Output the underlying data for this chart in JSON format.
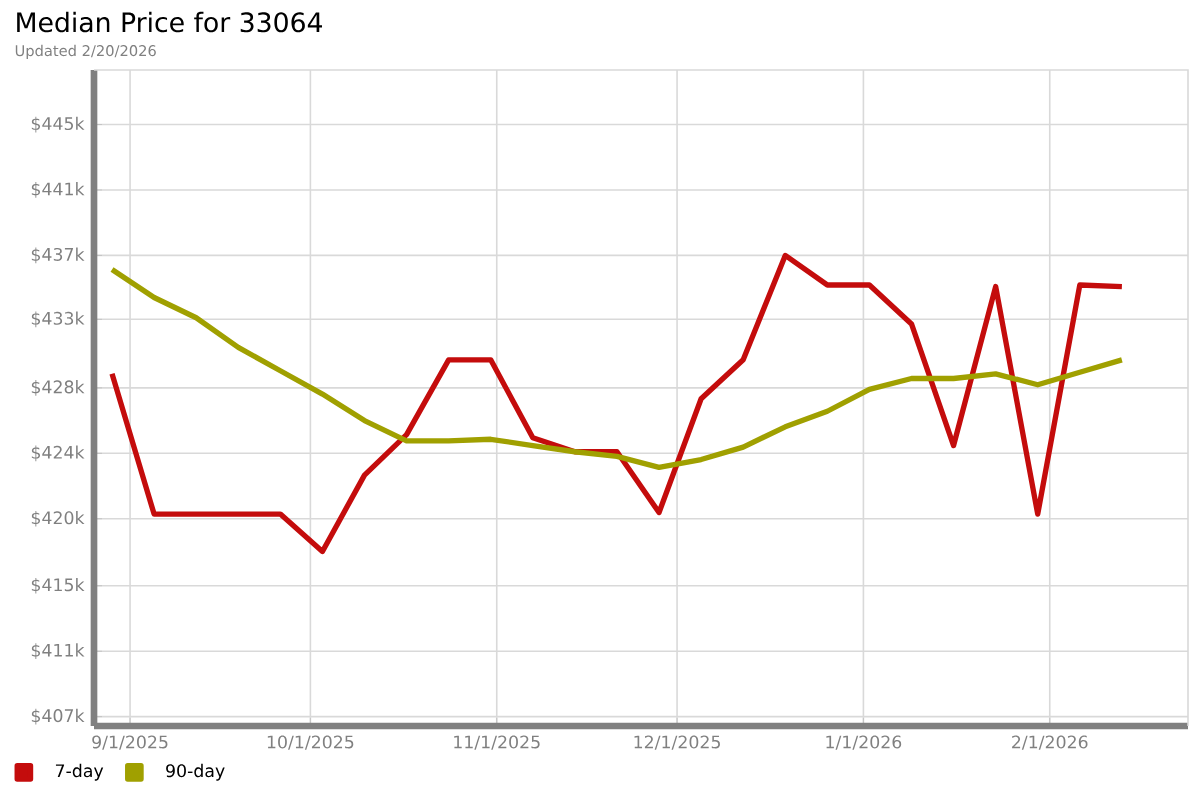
{
  "chart_data": {
    "type": "line",
    "title": "Median Price for 33064",
    "subtitle": "Updated 2/20/2026",
    "x": [
      "2025-08-29",
      "2025-09-05",
      "2025-09-12",
      "2025-09-19",
      "2025-09-26",
      "2025-10-03",
      "2025-10-10",
      "2025-10-17",
      "2025-10-24",
      "2025-10-31",
      "2025-11-07",
      "2025-11-14",
      "2025-11-21",
      "2025-11-28",
      "2025-12-05",
      "2025-12-12",
      "2025-12-19",
      "2025-12-26",
      "2026-01-02",
      "2026-01-09",
      "2026-01-16",
      "2026-01-23",
      "2026-01-30",
      "2026-02-06",
      "2026-02-13"
    ],
    "series": [
      {
        "name": "7-day",
        "color": "#c40c0c",
        "values": [
          429.0,
          420.0,
          420.0,
          420.0,
          420.0,
          417.6,
          422.5,
          425.1,
          429.9,
          429.9,
          424.9,
          424.0,
          424.0,
          420.1,
          427.4,
          429.9,
          436.6,
          434.7,
          434.7,
          432.2,
          424.4,
          434.6,
          420.0,
          434.7,
          434.6
        ]
      },
      {
        "name": "90-day",
        "color": "#a0a000",
        "values": [
          435.7,
          433.9,
          432.6,
          430.7,
          429.2,
          427.7,
          426.0,
          424.7,
          424.7,
          424.8,
          424.4,
          424.0,
          423.7,
          423.0,
          423.5,
          424.3,
          425.6,
          426.6,
          428.0,
          428.7,
          428.7,
          429.0,
          428.3,
          429.1,
          429.9
        ]
      }
    ],
    "xlim": [
      "2025-08-26",
      "2026-02-24"
    ],
    "xticks": [
      {
        "value": "2025-09-01",
        "label": "9/1/2025"
      },
      {
        "value": "2025-10-01",
        "label": "10/1/2025"
      },
      {
        "value": "2025-11-01",
        "label": "11/1/2025"
      },
      {
        "value": "2025-12-01",
        "label": "12/1/2025"
      },
      {
        "value": "2026-01-01",
        "label": "1/1/2026"
      },
      {
        "value": "2026-02-01",
        "label": "2/1/2026"
      }
    ],
    "ylim": [
      406.4,
      448.5
    ],
    "yticks": [
      {
        "value": 407,
        "label": "$407k"
      },
      {
        "value": 411.2,
        "label": "$411k"
      },
      {
        "value": 415.4,
        "label": "$415k"
      },
      {
        "value": 419.7,
        "label": "$420k"
      },
      {
        "value": 423.9,
        "label": "$424k"
      },
      {
        "value": 428.1,
        "label": "$428k"
      },
      {
        "value": 432.5,
        "label": "$433k"
      },
      {
        "value": 436.6,
        "label": "$437k"
      },
      {
        "value": 440.8,
        "label": "$441k"
      },
      {
        "value": 445,
        "label": "$445k"
      }
    ],
    "grid": true,
    "legend": "bottom left",
    "marker": "none",
    "line_style": "solid"
  }
}
